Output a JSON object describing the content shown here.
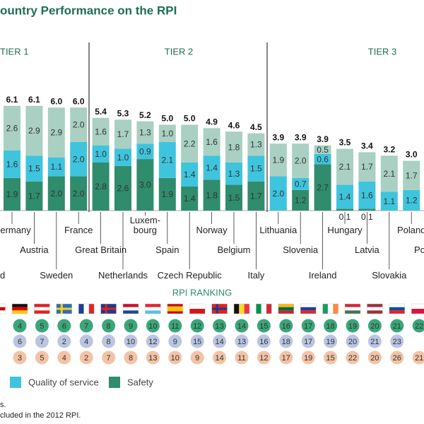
{
  "title": "ountry Performance on the RPI",
  "footnotes": [
    "s.",
    "cluded in the 2012 RPI."
  ],
  "chart_data": {
    "type": "stacked_bar",
    "tiers": [
      "TIER 1",
      "TIER 2",
      "TIER 3"
    ],
    "categories": [
      "d",
      "Germany",
      "Austria",
      "Sweden",
      "France",
      "Great Britain",
      "Netherlands",
      "Luxem-bourg",
      "Spain",
      "Czech Republic",
      "Norway",
      "Belgium",
      "Italy",
      "Lithuania",
      "Slovenia",
      "Ireland",
      "Hungary",
      "Latvia",
      "Slovakia",
      "Poland",
      "Po"
    ],
    "series": [
      {
        "color": "#a9d0c2",
        "values": [
          null,
          2.6,
          2.9,
          2.9,
          2.0,
          1.6,
          1.7,
          1.3,
          1.0,
          2.2,
          1.6,
          1.8,
          1.3,
          1.9,
          2.0,
          0.5,
          2.1,
          1.7,
          2.1,
          1.7,
          null
        ],
        "value_labels": [
          null,
          "2.6",
          "2.9",
          "2.9",
          "2.0",
          "1.6",
          "1.7",
          "1.3",
          "1.0",
          "2.2",
          "1.6",
          "1.8",
          "1.3",
          "1.9",
          "2.0",
          "0.5",
          "2.1",
          "1.7",
          "2.1",
          "1.7",
          null
        ]
      },
      {
        "name": "Quality of service",
        "color": "#3fc4dd",
        "values": [
          null,
          1.6,
          1.5,
          1.1,
          2.0,
          1.0,
          1.0,
          0.9,
          2.1,
          1.4,
          1.4,
          1.3,
          1.5,
          2.0,
          0.7,
          0.6,
          1.4,
          1.6,
          1.1,
          1.2,
          null
        ],
        "value_labels": [
          null,
          "1.6",
          "1.5",
          "1.1",
          "2.0",
          "1.0",
          "1.0",
          "0.9",
          "2.1",
          "1.4",
          "1.4",
          "1.3",
          "1.5",
          "2.0",
          "0.7",
          "0.6",
          "1.4",
          "1.6",
          "1.1",
          "1.2",
          null
        ]
      },
      {
        "name": "Safety",
        "color": "#2f8c6d",
        "values": [
          null,
          1.9,
          1.7,
          2.0,
          2.0,
          2.8,
          2.6,
          3.0,
          1.9,
          1.4,
          1.8,
          1.5,
          1.7,
          null,
          1.2,
          2.7,
          0.1,
          0.1,
          null,
          null,
          null
        ],
        "value_labels": [
          null,
          "1.9",
          "1.7",
          "2.0",
          "2.0",
          "2.8",
          "2.6",
          "3.0",
          "1.9",
          "1.4",
          "1.8",
          "1.5",
          "1.7",
          null,
          "1.2",
          "2.7",
          "0.1",
          "0.1",
          null,
          null,
          null
        ]
      }
    ],
    "totals": {
      "values": [
        null,
        6.1,
        6.1,
        6.0,
        6.0,
        5.4,
        5.3,
        5.2,
        5.0,
        5.0,
        4.9,
        4.6,
        4.5,
        3.9,
        3.9,
        3.9,
        3.5,
        3.4,
        3.2,
        3.0,
        null
      ],
      "value_labels": [
        null,
        "6.1",
        "6.1",
        "6.0",
        "6.0",
        "5.4",
        "5.3",
        "5.2",
        "5.0",
        "5.0",
        "4.9",
        "4.6",
        "4.5",
        "3.9",
        "3.9",
        "3.9",
        "3.5",
        "3.4",
        "3.2",
        "3.0",
        null
      ]
    },
    "ranking_title": "RPI RANKING",
    "rankings": [
      {
        "color": "#3aa679",
        "values": [
          null,
          4,
          5,
          6,
          7,
          8,
          9,
          10,
          11,
          12,
          13,
          14,
          15,
          16,
          17,
          18,
          19,
          20,
          21,
          22,
          null
        ]
      },
      {
        "color": "#bac5e2",
        "values": [
          null,
          6,
          7,
          2,
          4,
          8,
          10,
          12,
          9,
          15,
          14,
          13,
          16,
          18,
          17,
          19,
          20,
          21,
          23,
          null,
          null
        ]
      },
      {
        "color": "#f3c3a6",
        "values": [
          null,
          3,
          5,
          4,
          2,
          7,
          8,
          13,
          10,
          9,
          14,
          11,
          12,
          17,
          19,
          15,
          22,
          20,
          26,
          21,
          null
        ]
      }
    ]
  }
}
